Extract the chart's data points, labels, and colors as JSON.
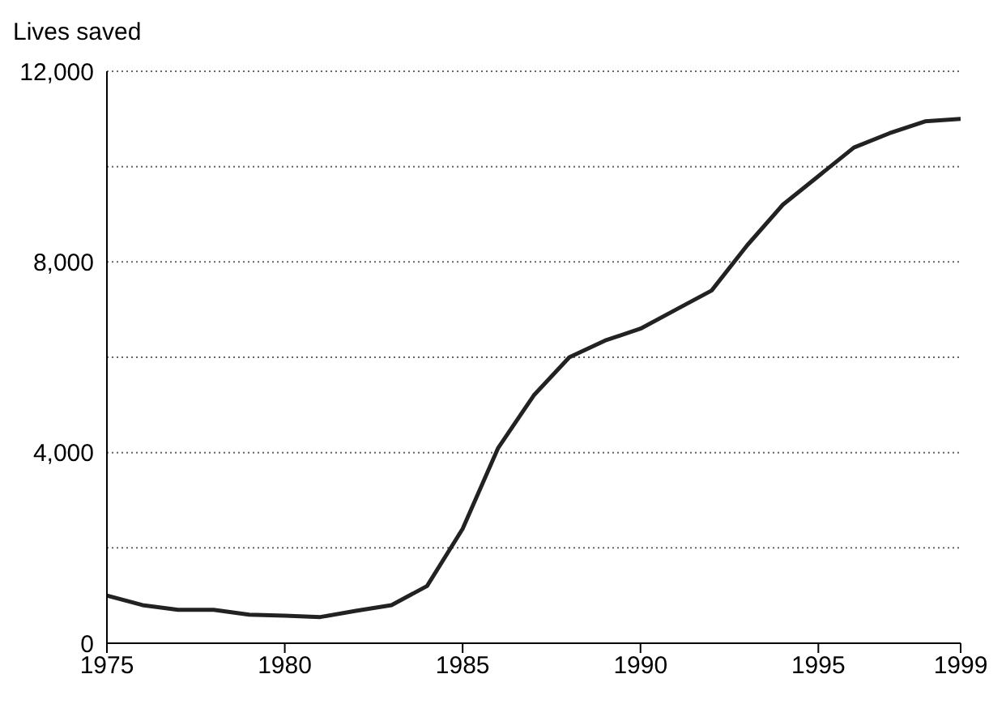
{
  "chart_data": {
    "type": "line",
    "ylabel": "Lives saved",
    "x": [
      1975,
      1976,
      1977,
      1978,
      1979,
      1980,
      1981,
      1982,
      1983,
      1984,
      1985,
      1986,
      1987,
      1988,
      1989,
      1990,
      1991,
      1992,
      1993,
      1994,
      1995,
      1996,
      1997,
      1998,
      1999
    ],
    "series": [
      {
        "color": "#222222",
        "values": [
          1000,
          800,
          700,
          700,
          600,
          580,
          550,
          680,
          800,
          1200,
          2400,
          4100,
          5200,
          6000,
          6350,
          6600,
          7000,
          7400,
          8350,
          9200,
          9800,
          10400,
          10700,
          10950,
          11000
        ]
      }
    ],
    "xlim": [
      1975,
      1999
    ],
    "xticks": [
      1975,
      1980,
      1985,
      1990,
      1995,
      1999
    ],
    "ylim": [
      0,
      12000
    ],
    "yticks": [
      0,
      {
        "value": 2000,
        "label": null
      },
      "4,000",
      {
        "value": 6000,
        "label": null
      },
      {
        "value": 8000,
        "label": "8,000"
      },
      {
        "value": 10000,
        "label": null
      },
      {
        "value": 12000,
        "label": "12,000"
      }
    ],
    "grid": "y",
    "marker": "none",
    "line_style": "solid"
  }
}
